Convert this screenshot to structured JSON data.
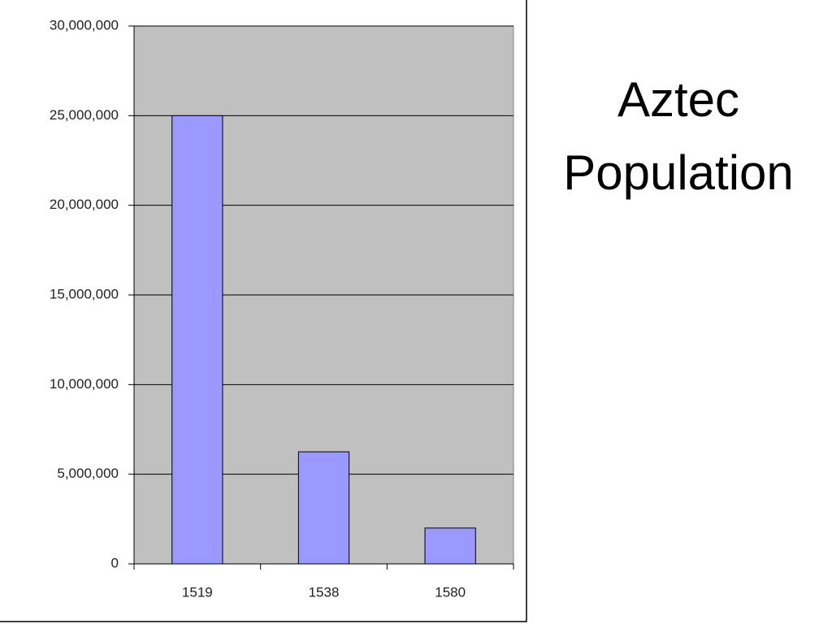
{
  "chart_data": {
    "type": "bar",
    "title": "Aztec Population",
    "categories": [
      "1519",
      "1538",
      "1580"
    ],
    "values": [
      25000000,
      6250000,
      2000000
    ],
    "color": "#9999ff",
    "ylim": [
      0,
      30000000
    ],
    "yticks": [
      0,
      {
        "value": 5000000,
        "label": "5,000,000"
      },
      {
        "value": 10000000,
        "label": "10,000,000"
      },
      {
        "value": 15000000,
        "label": "15,000,000"
      },
      {
        "value": 20000000,
        "label": "20,000,000"
      },
      {
        "value": 25000000,
        "label": "25,000,000"
      },
      {
        "value": 30000000,
        "label": "30,000,000"
      }
    ],
    "grid": true
  }
}
